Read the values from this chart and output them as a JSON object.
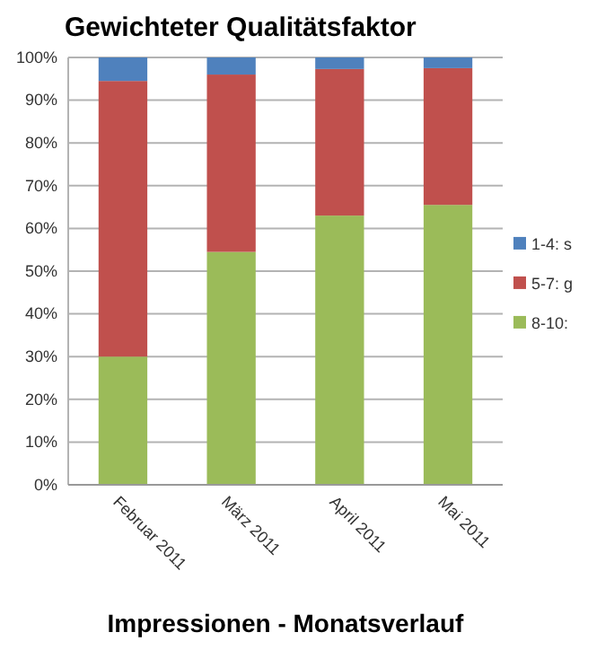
{
  "chart_data": {
    "type": "bar",
    "title": "Gewichteter Qualitätsfaktor",
    "stacked": true,
    "categories": [
      "Februar 2011",
      "März 2011",
      "April 2011",
      "Mai 2011"
    ],
    "series": [
      {
        "name": "8-10:",
        "color": "#9bbb59",
        "values": [
          30,
          54.5,
          63,
          65.5
        ]
      },
      {
        "name": "5-7: g",
        "color": "#c0504d",
        "values": [
          64.5,
          41.5,
          34.3,
          32
        ]
      },
      {
        "name": "1-4: s",
        "color": "#4f81bd",
        "values": [
          5.5,
          4,
          2.7,
          2.5
        ]
      }
    ],
    "ylim": [
      0,
      100
    ],
    "yticks": [
      {
        "value": 0,
        "label": "0%"
      },
      {
        "value": 10,
        "label": "10%"
      },
      {
        "value": 20,
        "label": "20%"
      },
      {
        "value": 30,
        "label": "30%"
      },
      {
        "value": 40,
        "label": "40%"
      },
      {
        "value": 50,
        "label": "50%"
      },
      {
        "value": 60,
        "label": "60%"
      },
      {
        "value": 70,
        "label": "70%"
      },
      {
        "value": 80,
        "label": "80%"
      },
      {
        "value": 90,
        "label": "90%"
      },
      {
        "value": 100,
        "label": "100%"
      }
    ],
    "grid": "y",
    "legend": "right",
    "annotations": [
      "Impressionen - Monatsverlauf"
    ]
  }
}
